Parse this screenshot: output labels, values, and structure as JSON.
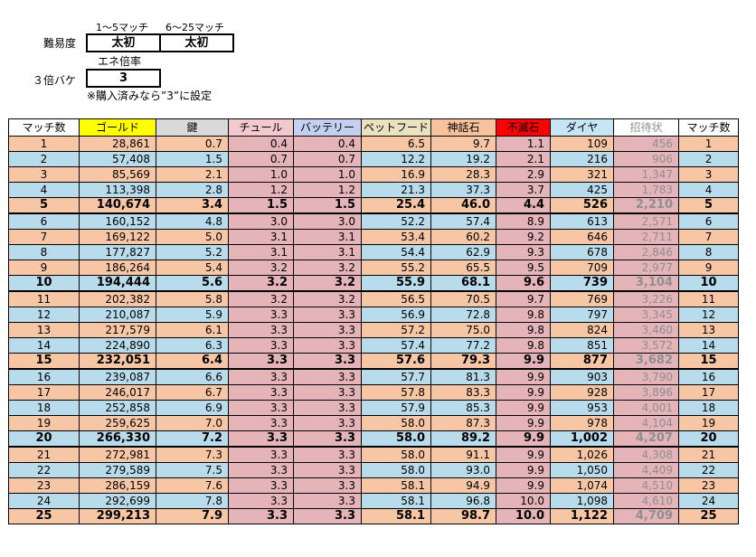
{
  "settings": {
    "header_left": "1〜5マッチ",
    "header_right": "6〜25マッチ",
    "difficulty_label": "難易度",
    "difficulty_left": "太初",
    "difficulty_right": "太初",
    "energy_header": "エネ倍率",
    "bake_label": "３倍バケ",
    "bake_value": "3",
    "note": "※購入済みなら”3”に設定"
  },
  "table": {
    "headers": [
      "マッチ数",
      "ゴールド",
      "鍵",
      "チュール",
      "バッテリー",
      "ペットフード",
      "神話石",
      "不滅石",
      "ダイヤ",
      "招待状",
      "マッチ数"
    ],
    "header_colors": [
      "#ffffff",
      "#ffff00",
      "#d9d9d9",
      "#f2c9cf",
      "#c5cff0",
      "#ebe3bf",
      "#f8c39c",
      "#ff0000",
      "#c6e5f5",
      "#ffffff",
      "#ffffff"
    ],
    "rows": [
      [
        "1",
        "28,861",
        "0.7",
        "0.4",
        "0.4",
        "6.5",
        "9.7",
        "1.1",
        "109",
        "456",
        "1"
      ],
      [
        "2",
        "57,408",
        "1.5",
        "0.7",
        "0.7",
        "12.2",
        "19.2",
        "2.1",
        "216",
        "906",
        "2"
      ],
      [
        "3",
        "85,569",
        "2.1",
        "1.0",
        "1.0",
        "16.9",
        "28.3",
        "2.9",
        "321",
        "1,347",
        "3"
      ],
      [
        "4",
        "113,398",
        "2.8",
        "1.2",
        "1.2",
        "21.3",
        "37.3",
        "3.7",
        "425",
        "1,783",
        "4"
      ],
      [
        "5",
        "140,674",
        "3.4",
        "1.5",
        "1.5",
        "25.4",
        "46.0",
        "4.4",
        "526",
        "2,210",
        "5"
      ],
      [
        "6",
        "160,152",
        "4.8",
        "3.0",
        "3.0",
        "52.2",
        "57.4",
        "8.9",
        "613",
        "2,571",
        "6"
      ],
      [
        "7",
        "169,122",
        "5.0",
        "3.1",
        "3.1",
        "53.4",
        "60.2",
        "9.2",
        "646",
        "2,711",
        "7"
      ],
      [
        "8",
        "177,827",
        "5.2",
        "3.1",
        "3.1",
        "54.4",
        "62.9",
        "9.3",
        "678",
        "2,846",
        "8"
      ],
      [
        "9",
        "186,264",
        "5.4",
        "3.2",
        "3.2",
        "55.2",
        "65.5",
        "9.5",
        "709",
        "2,977",
        "9"
      ],
      [
        "10",
        "194,444",
        "5.6",
        "3.2",
        "3.2",
        "55.9",
        "68.1",
        "9.6",
        "739",
        "3,104",
        "10"
      ],
      [
        "11",
        "202,382",
        "5.8",
        "3.2",
        "3.2",
        "56.5",
        "70.5",
        "9.7",
        "769",
        "3,226",
        "11"
      ],
      [
        "12",
        "210,087",
        "5.9",
        "3.3",
        "3.3",
        "56.9",
        "72.8",
        "9.8",
        "797",
        "3,345",
        "12"
      ],
      [
        "13",
        "217,579",
        "6.1",
        "3.3",
        "3.3",
        "57.2",
        "75.0",
        "9.8",
        "824",
        "3,460",
        "13"
      ],
      [
        "14",
        "224,890",
        "6.3",
        "3.3",
        "3.3",
        "57.4",
        "77.2",
        "9.8",
        "851",
        "3,572",
        "14"
      ],
      [
        "15",
        "232,051",
        "6.4",
        "3.3",
        "3.3",
        "57.6",
        "79.3",
        "9.9",
        "877",
        "3,682",
        "15"
      ],
      [
        "16",
        "239,087",
        "6.6",
        "3.3",
        "3.3",
        "57.7",
        "81.3",
        "9.9",
        "903",
        "3,790",
        "16"
      ],
      [
        "17",
        "246,017",
        "6.7",
        "3.3",
        "3.3",
        "57.8",
        "83.3",
        "9.9",
        "928",
        "3,896",
        "17"
      ],
      [
        "18",
        "252,858",
        "6.9",
        "3.3",
        "3.3",
        "57.9",
        "85.3",
        "9.9",
        "953",
        "4,001",
        "18"
      ],
      [
        "19",
        "259,625",
        "7.0",
        "3.3",
        "3.3",
        "58.0",
        "87.3",
        "9.9",
        "978",
        "4,104",
        "19"
      ],
      [
        "20",
        "266,330",
        "7.2",
        "3.3",
        "3.3",
        "58.0",
        "89.2",
        "9.9",
        "1,002",
        "4,207",
        "20"
      ],
      [
        "21",
        "272,981",
        "7.3",
        "3.3",
        "3.3",
        "58.0",
        "91.1",
        "9.9",
        "1,026",
        "4,308",
        "21"
      ],
      [
        "22",
        "279,589",
        "7.5",
        "3.3",
        "3.3",
        "58.0",
        "93.0",
        "9.9",
        "1,050",
        "4,409",
        "22"
      ],
      [
        "23",
        "286,159",
        "7.6",
        "3.3",
        "3.3",
        "58.1",
        "94.9",
        "9.9",
        "1,074",
        "4,510",
        "23"
      ],
      [
        "24",
        "292,699",
        "7.8",
        "3.3",
        "3.3",
        "58.1",
        "96.8",
        "10.0",
        "1,098",
        "4,610",
        "24"
      ],
      [
        "25",
        "299,213",
        "7.9",
        "3.3",
        "3.3",
        "58.1",
        "98.7",
        "10.0",
        "1,122",
        "4,709",
        "25"
      ]
    ]
  }
}
